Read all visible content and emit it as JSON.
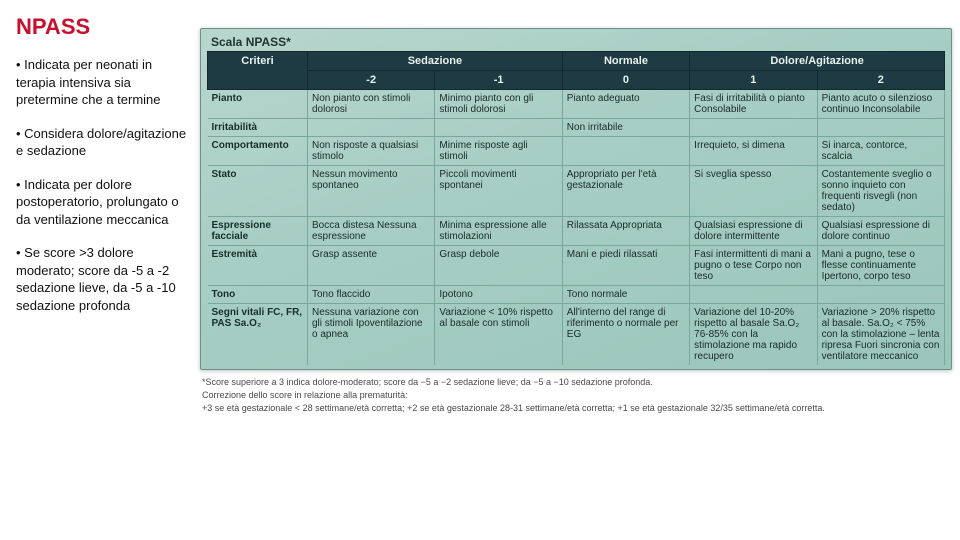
{
  "title": "NPASS",
  "bullets": [
    "Indicata per neonati in terapia intensiva sia pretermine che a termine",
    "Considera dolore/agitazione e sedazione",
    "Indicata per dolore postoperatorio, prolungato o da ventilazione meccanica",
    "Se score >3 dolore moderato; score da -5 a -2 sedazione lieve, da -5 a -10 sedazione profonda"
  ],
  "table_label": "Scala NPASS*",
  "header_groups": {
    "criteri": "Criteri",
    "sedazione": "Sedazione",
    "normale": "Normale",
    "dolore": "Dolore/Agitazione"
  },
  "header_scores": {
    "m2": "-2",
    "m1": "-1",
    "z": "0",
    "p1": "1",
    "p2": "2"
  },
  "rows": [
    {
      "crit": "Pianto",
      "m2": "Non pianto con stimoli dolorosi",
      "m1": "Minimo pianto con gli stimoli dolorosi",
      "z": "Pianto adeguato",
      "p1": "Fasi di irritabilità o pianto Consolabile",
      "p2": "Pianto acuto o silenzioso continuo Inconsolabile"
    },
    {
      "crit": "Irritabilità",
      "m2": "",
      "m1": "",
      "z": "Non irritabile",
      "p1": "",
      "p2": ""
    },
    {
      "crit": "Comportamento",
      "m2": "Non risposte a qualsiasi stimolo",
      "m1": "Minime risposte agli stimoli",
      "z": "",
      "p1": "Irrequieto, si dimena",
      "p2": "Si inarca, contorce, scalcia"
    },
    {
      "crit": "Stato",
      "m2": "Nessun movimento spontaneo",
      "m1": "Piccoli movimenti spontanei",
      "z": "Appropriato per l'età gestazionale",
      "p1": "Si sveglia spesso",
      "p2": "Costantemente sveglio o sonno inquieto con frequenti risvegli (non sedato)"
    },
    {
      "crit": "Espressione facciale",
      "m2": "Bocca distesa Nessuna espressione",
      "m1": "Minima espressione alle stimolazioni",
      "z": "Rilassata Appropriata",
      "p1": "Qualsiasi espressione di dolore intermittente",
      "p2": "Qualsiasi espressione di dolore continuo"
    },
    {
      "crit": "Estremità",
      "m2": "Grasp assente",
      "m1": "Grasp debole",
      "z": "Mani e piedi rilassati",
      "p1": "Fasi intermittenti di mani a pugno o tese Corpo non teso",
      "p2": "Mani a pugno, tese o flesse continuamente Ipertono, corpo teso"
    },
    {
      "crit": "Tono",
      "m2": "Tono flaccido",
      "m1": "Ipotono",
      "z": "Tono normale",
      "p1": "",
      "p2": ""
    },
    {
      "crit": "Segni vitali FC, FR, PAS Sa.O₂",
      "m2": "Nessuna variazione con gli stimoli\n\nIpoventilazione o apnea",
      "m1": "Variazione < 10% rispetto al basale con stimoli",
      "z": "All'interno del range di riferimento o normale per EG",
      "p1": "Variazione del 10-20% rispetto al basale Sa.O₂ 76-85% con la stimolazione ma rapido recupero",
      "p2": "Variazione > 20% rispetto al basale. Sa.O₂ < 75% con la stimolazione – lenta ripresa Fuori sincronia con ventilatore meccanico"
    }
  ],
  "footnotes": [
    "*Score superiore a 3 indica dolore-moderato; score da −5 a −2 sedazione lieve; da −5 a −10 sedazione profonda.",
    "Correzione dello score in relazione alla prematurità:",
    "+3 se età gestazionale < 28 settimane/età corretta; +2 se età gestazionale 28-31 settimane/età corretta; +1 se età gestazionale 32/35 settimane/età corretta."
  ],
  "colors": {
    "title": "#c8102e",
    "header_bg": "#1e3a42",
    "header_fg": "#e8f2ef",
    "scan_bg_start": "#b8d6cd",
    "scan_bg_end": "#9bc6bb",
    "cell_border": "#7aa79b"
  }
}
